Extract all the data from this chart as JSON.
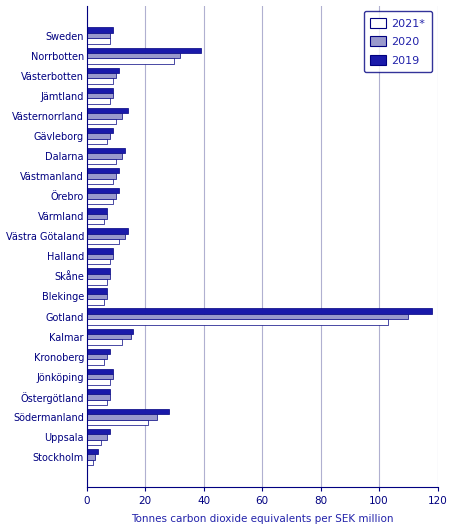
{
  "regions": [
    "Sweden",
    "Norrbotten",
    "Västerbotten",
    "Jämtland",
    "Västernorrland",
    "Gävleborg",
    "Dalarna",
    "Västmanland",
    "Örebro",
    "Värmland",
    "Västra Götaland",
    "Halland",
    "Skåne",
    "Blekinge",
    "Gotland",
    "Kalmar",
    "Kronoberg",
    "Jönköping",
    "Östergötland",
    "Södermanland",
    "Uppsala",
    "Stockholm"
  ],
  "values_2021": [
    8,
    30,
    9,
    8,
    10,
    7,
    10,
    9,
    9,
    6,
    11,
    8,
    7,
    6,
    103,
    12,
    6,
    8,
    7,
    21,
    5,
    2
  ],
  "values_2020": [
    8,
    32,
    10,
    9,
    12,
    8,
    12,
    10,
    10,
    7,
    13,
    9,
    8,
    7,
    110,
    15,
    7,
    9,
    8,
    24,
    7,
    3
  ],
  "values_2019": [
    9,
    39,
    11,
    9,
    14,
    9,
    13,
    11,
    11,
    7,
    14,
    9,
    8,
    7,
    118,
    16,
    8,
    9,
    8,
    28,
    8,
    4
  ],
  "color_2021": "#ffffff",
  "color_2020": "#9999cc",
  "color_2019": "#1a1aaa",
  "edge_color": "#000080",
  "xlabel": "Tonnes carbon dioxide equivalents per SEK million",
  "xlim": [
    0,
    120
  ],
  "xticks": [
    0,
    20,
    40,
    60,
    80,
    100,
    120
  ],
  "legend_labels": [
    "2021*",
    "2020",
    "2019"
  ],
  "background_color": "#ffffff",
  "grid_color": "#b0b0d0",
  "label_color": "#2222aa",
  "axis_color": "#000080"
}
